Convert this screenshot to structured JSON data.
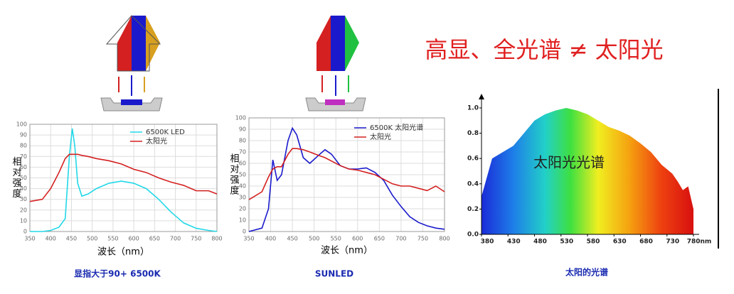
{
  "headline": "高显、全光谱 ≠ 太阳光",
  "chart_data": [
    {
      "type": "line",
      "x_label": "波长（nm）",
      "y_label": "相对强度",
      "caption": "显指大于90+ 6500K",
      "grid": true,
      "xlim": [
        350,
        800
      ],
      "ylim": [
        0,
        100
      ],
      "xticks": [
        350,
        400,
        450,
        500,
        550,
        600,
        650,
        700,
        750,
        800
      ],
      "yticks": [
        0,
        10,
        20,
        30,
        40,
        50,
        60,
        70,
        80,
        90,
        100
      ],
      "x": [
        350,
        380,
        400,
        420,
        435,
        445,
        452,
        458,
        465,
        475,
        490,
        510,
        540,
        570,
        600,
        630,
        660,
        690,
        720,
        750,
        780,
        800
      ],
      "series": [
        {
          "name": "6500K LED",
          "color": "#22d8e8",
          "values": [
            0,
            0,
            1,
            4,
            12,
            70,
            96,
            80,
            45,
            33,
            35,
            40,
            45,
            47,
            45,
            40,
            30,
            18,
            8,
            3,
            1,
            0
          ]
        },
        {
          "name": "太阳光",
          "color": "#d42020",
          "values": [
            28,
            30,
            40,
            55,
            68,
            72,
            72,
            72,
            72,
            71,
            70,
            68,
            66,
            63,
            58,
            55,
            50,
            46,
            43,
            38,
            38,
            35
          ]
        }
      ]
    },
    {
      "type": "line",
      "x_label": "波长（nm）",
      "y_label": "相对强度",
      "caption": "SUNLED",
      "grid": true,
      "xlim": [
        350,
        800
      ],
      "ylim": [
        0,
        100
      ],
      "xticks": [
        350,
        400,
        450,
        500,
        550,
        600,
        650,
        700,
        750,
        800
      ],
      "yticks": [
        0,
        10,
        20,
        30,
        40,
        50,
        60,
        70,
        80,
        90,
        100
      ],
      "x": [
        350,
        380,
        395,
        405,
        415,
        425,
        440,
        450,
        460,
        475,
        490,
        510,
        525,
        540,
        560,
        580,
        600,
        620,
        640,
        660,
        680,
        700,
        720,
        740,
        760,
        780,
        800
      ],
      "series": [
        {
          "name": "6500K 太阳光谱",
          "color": "#1a1acc",
          "values": [
            0,
            3,
            20,
            63,
            45,
            50,
            80,
            91,
            85,
            65,
            60,
            67,
            72,
            68,
            58,
            55,
            55,
            56,
            52,
            45,
            32,
            22,
            13,
            8,
            5,
            3,
            2
          ]
        },
        {
          "name": "太阳光",
          "color": "#d42020",
          "values": [
            28,
            35,
            48,
            55,
            57,
            57,
            68,
            73,
            73,
            72,
            70,
            67,
            65,
            62,
            58,
            55,
            54,
            52,
            50,
            46,
            42,
            40,
            40,
            38,
            36,
            40,
            35
          ]
        }
      ]
    },
    {
      "type": "area",
      "caption": "太阳的光谱",
      "annotation": "太阳光光谱",
      "grid": false,
      "xlim": [
        380,
        780
      ],
      "ylim": [
        0,
        1
      ],
      "xticks": [
        380,
        430,
        480,
        530,
        580,
        630,
        680,
        730,
        {
          "value": 780,
          "label": "780nm"
        }
      ],
      "yticks": [
        {
          "value": 0,
          "label": "0.0"
        },
        0.2,
        0.4,
        0.6,
        0.8,
        {
          "value": 1,
          "label": "1.0"
        }
      ],
      "x": [
        380,
        390,
        400,
        420,
        440,
        460,
        480,
        500,
        520,
        540,
        560,
        580,
        600,
        620,
        640,
        660,
        680,
        700,
        720,
        740,
        750,
        760,
        770,
        780
      ],
      "series": [
        {
          "values": [
            0.3,
            0.45,
            0.6,
            0.65,
            0.7,
            0.8,
            0.9,
            0.95,
            0.98,
            1.0,
            0.98,
            0.95,
            0.9,
            0.85,
            0.82,
            0.78,
            0.72,
            0.65,
            0.55,
            0.48,
            0.42,
            0.35,
            0.38,
            0.2
          ]
        }
      ]
    }
  ]
}
